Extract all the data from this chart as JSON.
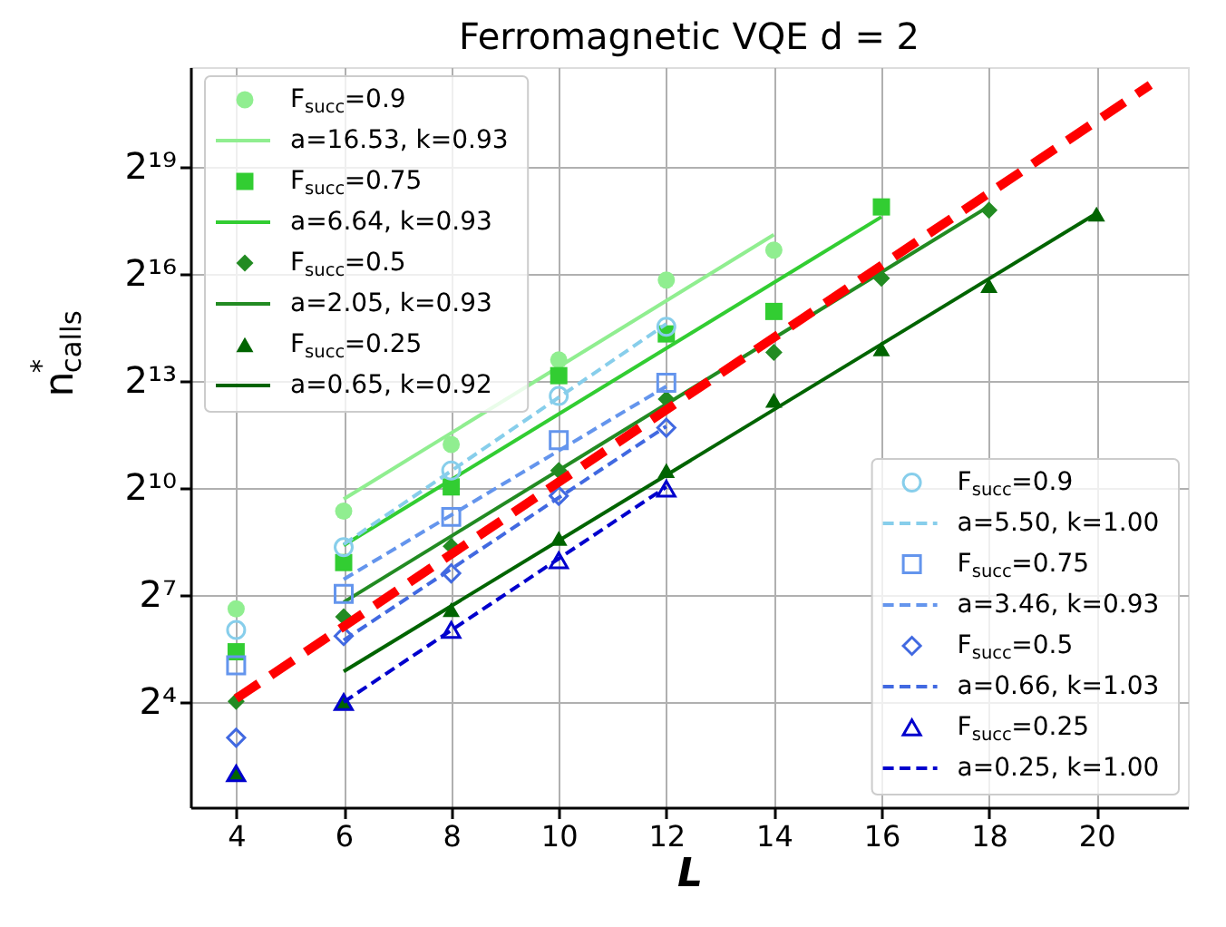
{
  "chart_data": {
    "type": "scatter",
    "title": "Ferromagnetic VQE d = 2",
    "xlabel": "L",
    "ylabel": "n$^{*}$$_{calls}$",
    "xlim": [
      3.15,
      21.7
    ],
    "xticks": [
      4,
      6,
      8,
      10,
      12,
      14,
      16,
      18,
      20
    ],
    "ylim": [
      2.07,
      3650000
    ],
    "log": "y",
    "yticks": [
      {
        "value": 16,
        "label": "2⁴"
      },
      {
        "value": 128,
        "label": "2⁷"
      },
      {
        "value": 1024,
        "label": "2¹⁰"
      },
      {
        "value": 8192,
        "label": "2¹³"
      },
      {
        "value": 65536,
        "label": "2¹⁶"
      },
      {
        "value": 524288,
        "label": "2¹⁹"
      }
    ],
    "grid": true,
    "legend": [
      "top left",
      "bottom right"
    ],
    "series": [
      {
        "name": "F$_{succ}$=0.9",
        "marker": "circle",
        "color": "#90ee90",
        "x": [
          4,
          6,
          8,
          10,
          12,
          14
        ],
        "values": [
          97.7,
          653,
          2386,
          12330,
          58260,
          104300
        ]
      },
      {
        "name": "a=16.53, k=0.93",
        "type": "line",
        "line_style": "solid",
        "color": "#90ee90",
        "x": [
          6,
          14
        ],
        "values": [
          826,
          140500
        ]
      },
      {
        "name": "F$_{succ}$=0.75",
        "marker": "square",
        "color": "#32cd32",
        "x": [
          4,
          6,
          8,
          10,
          12,
          14,
          16
        ],
        "values": [
          42.5,
          240.5,
          1046,
          9090,
          20450,
          31650,
          241200
        ]
      },
      {
        "name": "a=6.64, k=0.93",
        "type": "line",
        "line_style": "solid",
        "color": "#32cd32",
        "x": [
          6,
          16
        ],
        "values": [
          335.6,
          198700
        ]
      },
      {
        "name": "F$_{succ}$=0.5",
        "marker": "diamond",
        "color": "#228b22",
        "x": [
          4,
          6,
          8,
          10,
          12,
          14,
          16,
          18
        ],
        "values": [
          16.2,
          83.9,
          330.8,
          1438,
          5752,
          14260,
          60300,
          226600
        ]
      },
      {
        "name": "a=2.05, k=0.93",
        "type": "line",
        "line_style": "solid",
        "color": "#228b22",
        "x": [
          6,
          18
        ],
        "values": [
          111.4,
          244600
        ]
      },
      {
        "name": "F$_{succ}$=0.25",
        "marker": "triangle",
        "color": "#006400",
        "x": [
          4,
          6,
          8,
          10,
          12,
          14,
          16,
          18,
          20
        ],
        "values": [
          4.06,
          16.2,
          96.3,
          385,
          1438,
          5633,
          15290,
          52430,
          210000
        ]
      },
      {
        "name": "a=0.65, k=0.92",
        "type": "line",
        "line_style": "solid",
        "color": "#006400",
        "x": [
          6,
          20
        ],
        "values": [
          29.0,
          212900
        ]
      },
      {
        "name": "F$_{succ}$=0.9",
        "marker": "circle",
        "color": "#87ceeb",
        "x": [
          4,
          6,
          8,
          10,
          12
        ],
        "values": [
          64.9,
          324,
          1438,
          6124,
          23500
        ]
      },
      {
        "name": "a=5.50, k=1.00",
        "type": "line",
        "line_style": "dashed",
        "color": "#87ceeb",
        "x": [
          6,
          12
        ],
        "values": [
          342.5,
          24830
        ]
      },
      {
        "name": "F$_{succ}$=0.75",
        "marker": "square",
        "color": "#6495ed",
        "x": [
          4,
          6,
          8,
          10,
          12
        ],
        "values": [
          32.7,
          130.7,
          584,
          2593,
          7913
        ]
      },
      {
        "name": "a=3.46, k=0.93",
        "type": "line",
        "line_style": "dashed",
        "color": "#6495ed",
        "x": [
          6,
          12
        ],
        "values": [
          173.6,
          7383
        ]
      },
      {
        "name": "F$_{succ}$=0.5",
        "marker": "diamond",
        "color": "#4169e1",
        "x": [
          4,
          6,
          8,
          10,
          12
        ],
        "values": [
          8,
          57.7,
          195.3,
          879,
          3304
        ]
      },
      {
        "name": "a=0.66, k=1.03",
        "type": "line",
        "line_style": "dashed",
        "color": "#4169e1",
        "x": [
          6,
          12
        ],
        "values": [
          53.1,
          3397
        ]
      },
      {
        "name": "F$_{succ}$=0.25",
        "marker": "triangle",
        "color": "#0000cd",
        "x": [
          4,
          6,
          8,
          10,
          12
        ],
        "values": [
          4,
          16,
          64.9,
          250.8,
          1010
        ]
      },
      {
        "name": "a=0.25, k=1.00",
        "type": "line",
        "line_style": "dashed",
        "color": "#0000cd",
        "x": [
          6,
          12
        ],
        "values": [
          16,
          1046
        ]
      },
      {
        "type": "line",
        "line_style": "dashed",
        "color": "#ff0000",
        "x": [
          4,
          21
        ],
        "values": [
          17.1,
          2582000
        ]
      }
    ]
  }
}
